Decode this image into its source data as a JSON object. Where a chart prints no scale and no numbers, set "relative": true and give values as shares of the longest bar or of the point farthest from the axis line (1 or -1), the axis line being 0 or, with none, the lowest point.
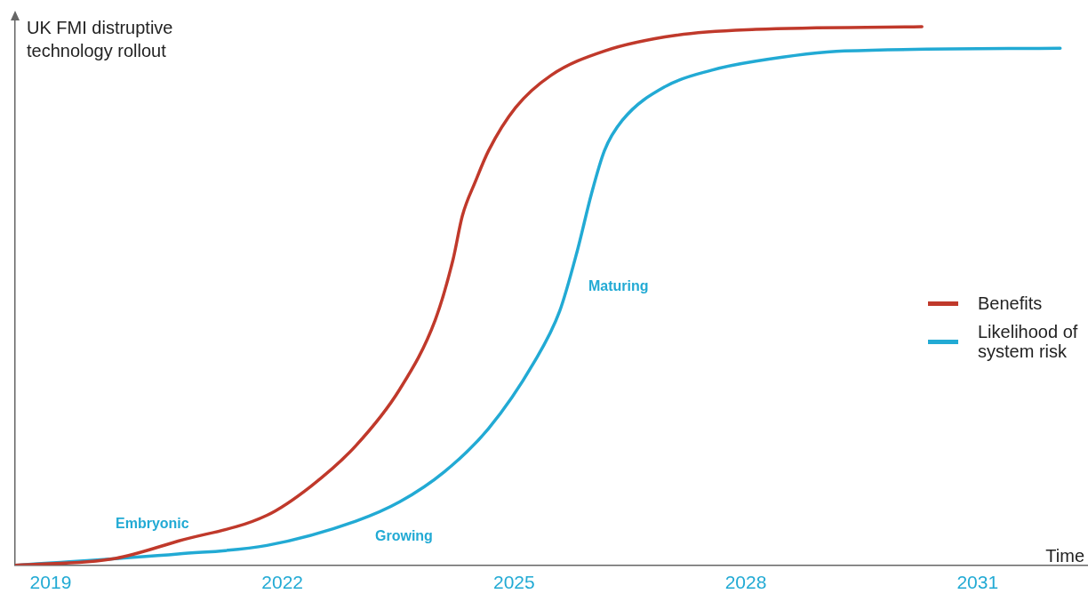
{
  "chart_data": {
    "type": "line",
    "relative": true,
    "ylabel": "UK FMI distruptive technology rollout",
    "xlabel": "Time",
    "legend": "right",
    "marker": "none",
    "line_style": "solid",
    "grid": false,
    "xlim": [
      2018.54,
      2032.43
    ],
    "xticks": [
      2019,
      2022,
      2025,
      2028,
      2031
    ],
    "series": [
      {
        "name": "Benefits",
        "color": "#c0392b",
        "x": [
          2018.54,
          2019.84,
          2020.65,
          2021.8,
          2022.37,
          2022.95,
          2023.52,
          2023.98,
          2024.21,
          2024.33,
          2024.5,
          2024.67,
          2025.02,
          2025.48,
          2026.17,
          2027.09,
          2028.13,
          2030.28
        ],
        "values": [
          0,
          0.013,
          0.045,
          0.093,
          0.147,
          0.222,
          0.327,
          0.456,
          0.568,
          0.649,
          0.713,
          0.77,
          0.85,
          0.91,
          0.955,
          0.984,
          0.995,
          1
        ]
      },
      {
        "name": "Likelihood of system risk",
        "color": "#22aad4",
        "x": [
          2018.54,
          2020.65,
          2021.8,
          2022.95,
          2023.52,
          2024.1,
          2024.67,
          2025.25,
          2025.59,
          2025.82,
          2026.0,
          2026.17,
          2026.4,
          2026.97,
          2027.55,
          2028.13,
          2029.28,
          2032.07
        ],
        "values": [
          0,
          0.021,
          0.037,
          0.082,
          0.118,
          0.174,
          0.254,
          0.375,
          0.472,
          0.585,
          0.689,
          0.77,
          0.826,
          0.89,
          0.919,
          0.936,
          0.955,
          0.96
        ]
      }
    ],
    "annotations": [
      "Embryonic",
      "Growing",
      "Maturing"
    ]
  }
}
